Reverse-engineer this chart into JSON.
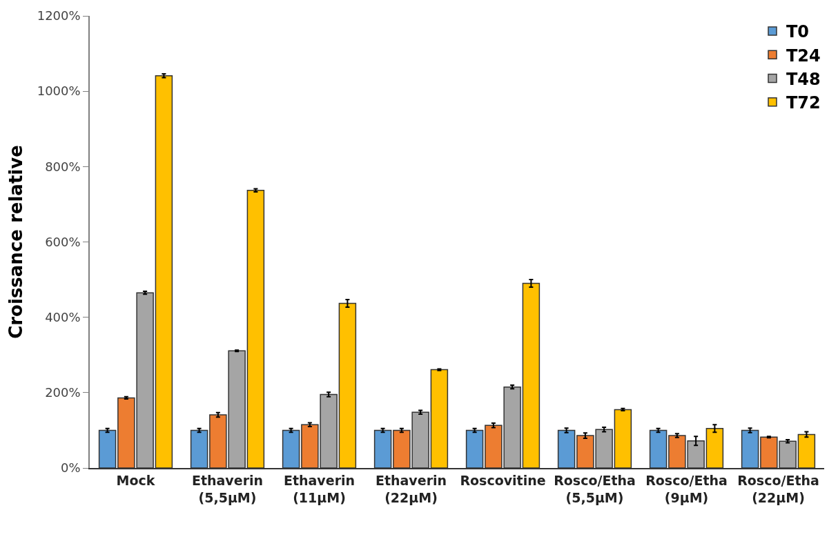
{
  "chart_data": {
    "type": "bar",
    "ylabel": "Croissance relative",
    "categories": [
      "Mock",
      "Ethaverin\n(5,5µM)",
      "Ethaverin\n(11µM)",
      "Ethaverin\n(22µM)",
      "Roscovitine",
      "Rosco/Etha\n(5,5µM)",
      "Rosco/Etha\n(9µM)",
      "Rosco/Etha\n(22µM)"
    ],
    "series": [
      {
        "name": "T0",
        "color": "#5b9bd5",
        "values": [
          100,
          100,
          100,
          100,
          100,
          100,
          100,
          100
        ],
        "errors": [
          5,
          5,
          5,
          5,
          5,
          6,
          5,
          6
        ]
      },
      {
        "name": "T24",
        "color": "#ed7d31",
        "values": [
          186,
          141,
          115,
          100,
          113,
          86,
          86,
          82
        ],
        "errors": [
          3,
          6,
          5,
          5,
          6,
          7,
          5,
          2
        ]
      },
      {
        "name": "T48",
        "color": "#a5a5a5",
        "values": [
          465,
          311,
          195,
          148,
          215,
          102,
          72,
          71
        ],
        "errors": [
          4,
          2,
          6,
          5,
          5,
          6,
          12,
          4
        ]
      },
      {
        "name": "T72",
        "color": "#ffc000",
        "values": [
          1041,
          737,
          437,
          261,
          490,
          155,
          105,
          89
        ],
        "errors": [
          5,
          4,
          10,
          2,
          10,
          3,
          10,
          7
        ]
      }
    ],
    "ylim": [
      0,
      1200
    ],
    "yticks": [
      {
        "value": 0,
        "label": "0%"
      },
      {
        "value": 200,
        "label": "200%"
      },
      {
        "value": 400,
        "label": "400%"
      },
      {
        "value": 600,
        "label": "600%"
      },
      {
        "value": 800,
        "label": "800%"
      },
      {
        "value": 1000,
        "label": "1000%"
      },
      {
        "value": 1200,
        "label": "1200%"
      }
    ],
    "grid": false,
    "legend": "top right"
  }
}
